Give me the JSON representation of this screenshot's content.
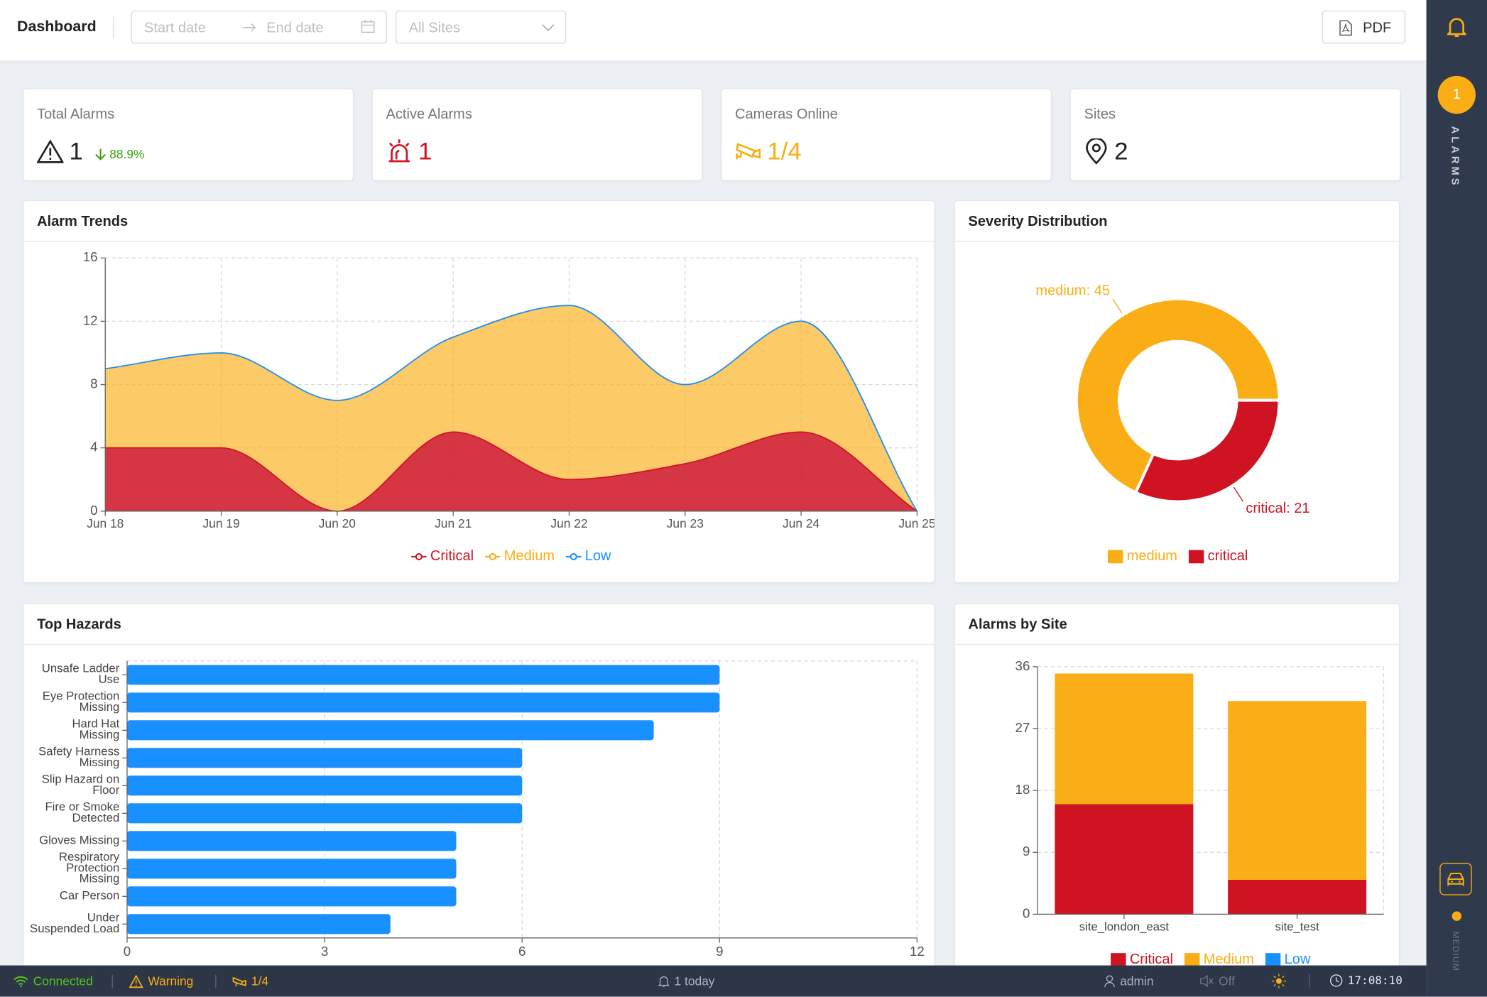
{
  "header": {
    "title": "Dashboard",
    "start_placeholder": "Start date",
    "end_placeholder": "End date",
    "site_select": "All Sites",
    "export_button": "PDF"
  },
  "kpis": [
    {
      "label": "Total Alarms",
      "value": 1,
      "change": "88.9%"
    },
    {
      "label": "Active Alarms",
      "value": 1
    },
    {
      "label": "Cameras Online",
      "value": "1/4"
    },
    {
      "label": "Sites",
      "value": 2
    }
  ],
  "chart_data": [
    {
      "type": "area",
      "title": "Alarm Trends",
      "stacked": true,
      "categories": [
        "Jun 18",
        "Jun 19",
        "Jun 20",
        "Jun 21",
        "Jun 22",
        "Jun 23",
        "Jun 24",
        "Jun 25"
      ],
      "series": [
        {
          "name": "Critical",
          "color": "#cf1322",
          "values": [
            4,
            4,
            0,
            5,
            2,
            3,
            5,
            0
          ]
        },
        {
          "name": "Medium",
          "color": "#faad14",
          "values": [
            5,
            6,
            7,
            6,
            11,
            5,
            7,
            0
          ]
        },
        {
          "name": "Low",
          "color": "#1890ff",
          "values": [
            0,
            0,
            0,
            0,
            0,
            0,
            0,
            0
          ]
        }
      ],
      "ylim": [
        0,
        16
      ],
      "yticks": [
        0,
        4,
        8,
        12,
        16
      ],
      "grid": true,
      "legend": "bottom"
    },
    {
      "type": "donut",
      "title": "Severity Distribution",
      "categories": [
        "medium",
        "critical"
      ],
      "values": [
        45,
        21
      ],
      "value_labels": [
        "medium: 45",
        "critical: 21"
      ],
      "colors": [
        "#faad14",
        "#cf1322"
      ],
      "legend": "bottom"
    },
    {
      "type": "hbar",
      "title": "Top Hazards",
      "categories": [
        "Unsafe Ladder Use",
        "Eye Protection Missing",
        "Hard Hat Missing",
        "Safety Harness Missing",
        "Slip Hazard on Floor",
        "Fire or Smoke Detected",
        "Gloves Missing",
        "Respiratory Protection Missing",
        "Car Person",
        "Under Suspended Load"
      ],
      "values": [
        9,
        9,
        8,
        6,
        6,
        6,
        5,
        5,
        5,
        4
      ],
      "color": "#1890ff",
      "xlim": [
        0,
        12
      ],
      "xticks": [
        0,
        3,
        6,
        9,
        12
      ],
      "grid": true
    },
    {
      "type": "stacked_bar",
      "title": "Alarms by Site",
      "categories": [
        "site_london_east",
        "site_test"
      ],
      "series": [
        {
          "name": "Critical",
          "color": "#cf1322",
          "values": [
            16,
            5
          ]
        },
        {
          "name": "Medium",
          "color": "#faad14",
          "values": [
            19,
            26
          ]
        },
        {
          "name": "Low",
          "color": "#1890ff",
          "values": [
            0,
            0
          ]
        }
      ],
      "ylim": [
        0,
        36
      ],
      "yticks": [
        0,
        9,
        18,
        27,
        36
      ],
      "grid": true,
      "legend": "bottom"
    }
  ],
  "sidebar": {
    "badge": 1,
    "label": "ALARMS",
    "level": "MEDIUM"
  },
  "status_bar": {
    "connection": "Connected",
    "health": "Warning",
    "cameras": "1/4",
    "today": "1 today",
    "user": "admin",
    "sound": "Off",
    "time": "17:08:10"
  }
}
